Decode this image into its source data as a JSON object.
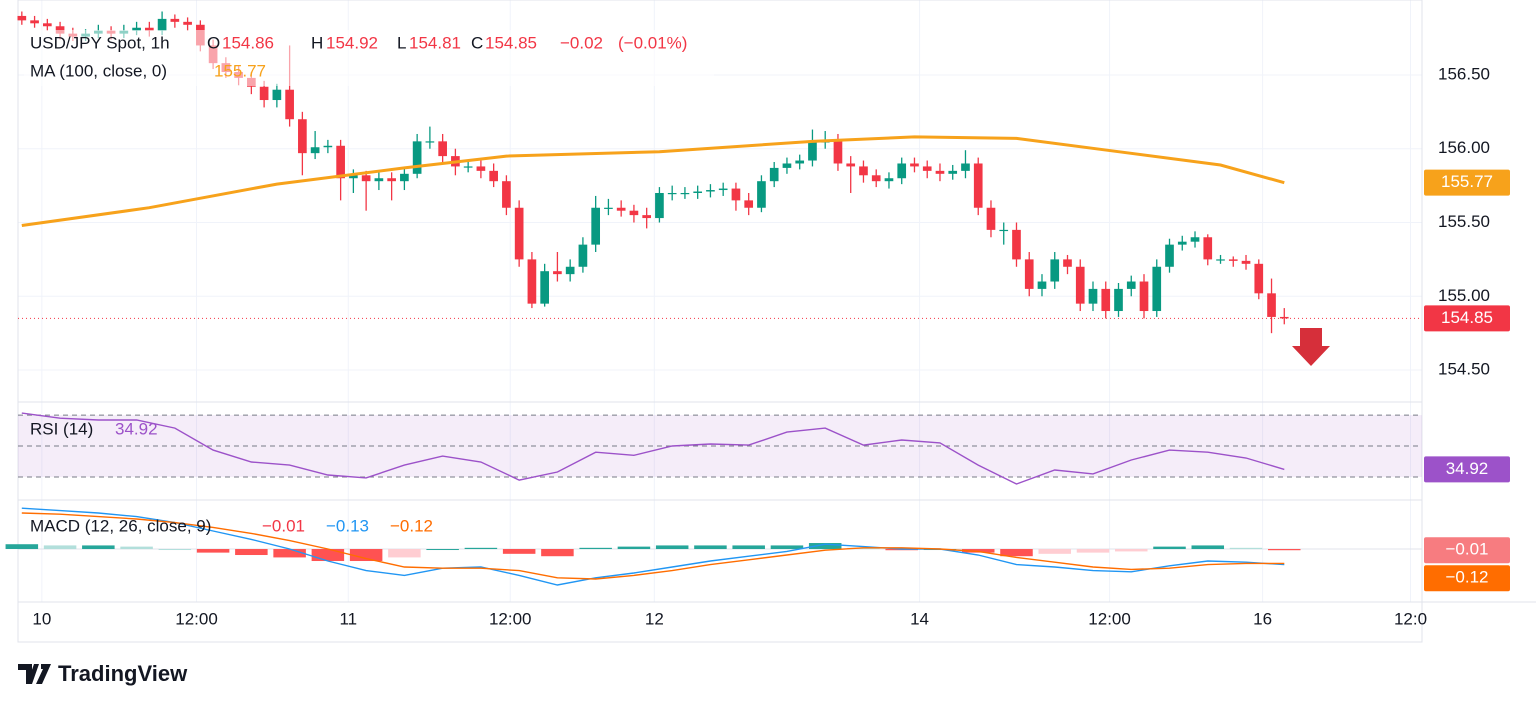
{
  "chart_data": {
    "type": "candlestick",
    "title": "USD/JPY Spot, 1h",
    "ohlc_labels": [
      "O",
      "H",
      "L",
      "C"
    ],
    "change": {
      "value": -0.02,
      "label": "−0.02"
    },
    "change_pct": {
      "value": -0.01,
      "label": "(−0.01%)"
    },
    "up_color": "#089981",
    "down_color": "#f23645",
    "open": [
      156.9,
      156.87,
      156.85,
      156.83,
      156.78,
      156.76,
      156.78,
      156.8,
      156.78,
      156.8,
      156.82,
      156.8,
      156.88,
      156.86,
      156.84,
      156.7,
      156.58,
      156.52,
      156.48,
      156.42,
      156.33,
      156.4,
      156.2,
      155.97,
      156.01,
      156.02,
      155.8,
      155.82,
      155.78,
      155.8,
      155.78,
      155.83,
      156.05,
      156.05,
      155.95,
      155.88,
      155.88,
      155.85,
      155.78,
      155.6,
      155.25,
      154.95,
      155.17,
      155.15,
      155.2,
      155.35,
      155.6,
      155.6,
      155.58,
      155.55,
      155.53,
      155.7,
      155.7,
      155.7,
      155.71,
      155.72,
      155.73,
      155.65,
      155.6,
      155.78,
      155.87,
      155.9,
      155.92,
      156.05,
      156.05,
      155.9,
      155.88,
      155.82,
      155.78,
      155.8,
      155.9,
      155.88,
      155.85,
      155.83,
      155.85,
      155.9,
      155.6,
      155.45,
      155.45,
      155.25,
      155.05,
      155.1,
      155.25,
      155.2,
      154.95,
      155.05,
      154.9,
      155.05,
      155.1,
      154.9,
      155.2,
      155.35,
      155.37,
      155.4,
      155.25,
      155.25,
      155.24,
      155.22,
      155.02,
      154.86
    ],
    "high": [
      156.93,
      156.9,
      156.88,
      156.86,
      156.82,
      156.81,
      156.84,
      156.83,
      156.84,
      156.86,
      156.86,
      156.93,
      156.91,
      156.89,
      156.87,
      156.74,
      156.62,
      156.56,
      156.52,
      156.46,
      156.44,
      156.7,
      156.25,
      156.12,
      156.06,
      156.06,
      155.86,
      155.85,
      155.84,
      155.84,
      155.87,
      156.1,
      156.15,
      156.1,
      156.0,
      155.92,
      155.92,
      155.9,
      155.82,
      155.65,
      155.3,
      155.22,
      155.3,
      155.25,
      155.4,
      155.68,
      155.66,
      155.65,
      155.62,
      155.6,
      155.74,
      155.75,
      155.74,
      155.75,
      155.76,
      155.77,
      155.77,
      155.7,
      155.82,
      155.91,
      155.94,
      155.96,
      156.13,
      156.12,
      156.1,
      155.95,
      155.92,
      155.86,
      155.84,
      155.94,
      155.94,
      155.92,
      155.9,
      155.89,
      155.99,
      155.94,
      155.65,
      155.5,
      155.5,
      155.3,
      155.15,
      155.3,
      155.28,
      155.25,
      155.1,
      155.1,
      155.09,
      155.14,
      155.15,
      155.25,
      155.39,
      155.41,
      155.44,
      155.42,
      155.28,
      155.27,
      155.28,
      155.25,
      155.12,
      154.92
    ],
    "low": [
      156.84,
      156.82,
      156.8,
      156.74,
      156.73,
      156.73,
      156.75,
      156.74,
      156.75,
      156.77,
      156.76,
      156.77,
      156.82,
      156.8,
      156.66,
      156.54,
      156.48,
      156.43,
      156.37,
      156.28,
      156.28,
      156.15,
      155.82,
      155.93,
      155.97,
      155.65,
      155.7,
      155.58,
      155.72,
      155.65,
      155.72,
      155.8,
      156.0,
      155.9,
      155.82,
      155.84,
      155.8,
      155.74,
      155.55,
      155.2,
      154.92,
      154.93,
      155.1,
      155.1,
      155.16,
      155.3,
      155.55,
      155.54,
      155.5,
      155.46,
      155.5,
      155.65,
      155.66,
      155.66,
      155.67,
      155.68,
      155.58,
      155.55,
      155.57,
      155.74,
      155.83,
      155.86,
      155.88,
      156.0,
      155.85,
      155.7,
      155.77,
      155.74,
      155.73,
      155.76,
      155.84,
      155.8,
      155.78,
      155.79,
      155.8,
      155.55,
      155.4,
      155.35,
      155.2,
      155.0,
      155.0,
      155.05,
      155.15,
      154.9,
      154.9,
      154.85,
      154.86,
      155.0,
      154.85,
      154.86,
      155.16,
      155.31,
      155.33,
      155.21,
      155.22,
      155.2,
      155.18,
      154.98,
      154.75,
      154.81
    ],
    "close": [
      156.87,
      156.85,
      156.83,
      156.78,
      156.76,
      156.78,
      156.8,
      156.78,
      156.8,
      156.82,
      156.8,
      156.88,
      156.86,
      156.84,
      156.7,
      156.58,
      156.52,
      156.48,
      156.42,
      156.33,
      156.4,
      156.2,
      155.97,
      156.01,
      156.02,
      155.8,
      155.82,
      155.78,
      155.8,
      155.78,
      155.83,
      156.05,
      156.05,
      155.95,
      155.88,
      155.88,
      155.85,
      155.78,
      155.6,
      155.25,
      154.95,
      155.17,
      155.15,
      155.2,
      155.35,
      155.6,
      155.6,
      155.58,
      155.55,
      155.53,
      155.7,
      155.7,
      155.7,
      155.71,
      155.72,
      155.73,
      155.65,
      155.6,
      155.78,
      155.87,
      155.9,
      155.92,
      156.05,
      156.05,
      155.9,
      155.88,
      155.82,
      155.78,
      155.8,
      155.9,
      155.88,
      155.85,
      155.83,
      155.85,
      155.9,
      155.6,
      155.45,
      155.45,
      155.25,
      155.05,
      155.1,
      155.25,
      155.2,
      154.95,
      155.05,
      154.9,
      155.05,
      155.1,
      154.9,
      155.2,
      155.35,
      155.37,
      155.4,
      155.25,
      155.25,
      155.24,
      155.22,
      155.02,
      154.86,
      154.85
    ],
    "xlim": [
      -0.3,
      109.8
    ],
    "xticks": [
      {
        "value": 1.57,
        "label": "10"
      },
      {
        "value": 13.7,
        "label": "12:00"
      },
      {
        "value": 25.6,
        "label": "11"
      },
      {
        "value": 38.3,
        "label": "12:00"
      },
      {
        "value": 49.6,
        "label": "12"
      },
      {
        "value": 70.4,
        "label": "14"
      },
      {
        "value": 85.3,
        "label": "12:00"
      },
      {
        "value": 97.3,
        "label": "16"
      },
      {
        "value": 108.9,
        "label": "12:0"
      }
    ],
    "ylim": [
      154.297,
      157.008
    ],
    "yticks": [
      {
        "value": 154.5,
        "label": "154.50"
      },
      {
        "value": 155,
        "label": "155.00"
      },
      {
        "value": 155.5,
        "label": "155.50"
      },
      {
        "value": 156,
        "label": "156.00"
      },
      {
        "value": 156.5,
        "label": "156.50"
      }
    ],
    "grid": true,
    "moving_average": {
      "name": "MA (100, close, 0)",
      "color": "#f7a21b",
      "x": [
        0,
        10,
        20,
        30,
        38,
        50,
        62,
        70,
        78,
        86,
        94,
        99
      ],
      "values": [
        155.48,
        155.6,
        155.76,
        155.87,
        155.95,
        155.98,
        156.05,
        156.08,
        156.07,
        155.98,
        155.89,
        155.77
      ]
    },
    "rsi": {
      "name": "RSI (14)",
      "color": "#9c52c9",
      "ylim": [
        21.6,
        76.5
      ],
      "levels": [
        30,
        50,
        70
      ],
      "x": [
        0,
        3,
        6,
        9,
        12,
        15,
        18,
        21,
        24,
        27,
        30,
        33,
        36,
        39,
        42,
        45,
        48,
        51,
        54,
        57,
        60,
        63,
        66,
        69,
        72,
        75,
        78,
        81,
        84,
        87,
        90,
        93,
        96,
        99
      ],
      "values": [
        71.3,
        68,
        66.8,
        66.8,
        61.6,
        47.4,
        39.7,
        37.7,
        31.3,
        29.4,
        37.7,
        43.5,
        39.7,
        28,
        33.2,
        46,
        44,
        50,
        51.3,
        50.6,
        59,
        61.6,
        50.6,
        53.9,
        52,
        37.7,
        25.5,
        34.5,
        32,
        41,
        47.4,
        46,
        42.3,
        34.92
      ]
    },
    "macd": {
      "name": "MACD (12, 26, close, 9)",
      "ylim": [
        -0.425,
        0.367
      ],
      "x": [
        0,
        3,
        6,
        9,
        12,
        15,
        18,
        21,
        24,
        27,
        30,
        33,
        36,
        39,
        42,
        45,
        48,
        51,
        54,
        57,
        60,
        63,
        66,
        69,
        72,
        75,
        78,
        81,
        84,
        87,
        90,
        93,
        96,
        99
      ],
      "histogram": {
        "legend_value": {
          "value": -0.01,
          "label": "−0.01"
        },
        "colors": [
          "#26a69a",
          "#b2dfdb",
          "#ff5252",
          "#ffcdd2"
        ],
        "values": [
          0.04,
          0.03,
          0.03,
          0.02,
          0,
          -0.03,
          -0.05,
          -0.07,
          -0.1,
          -0.1,
          -0.07,
          0,
          0.01,
          -0.04,
          -0.06,
          0.01,
          0.02,
          0.03,
          0.03,
          0.03,
          0.03,
          0.05,
          0.01,
          -0.01,
          0,
          -0.03,
          -0.06,
          -0.04,
          -0.03,
          -0.02,
          0.02,
          0.03,
          0.01,
          -0.01
        ]
      },
      "macd_line": {
        "color": "#2196f3",
        "legend_value": {
          "value": -0.13,
          "label": "−0.13"
        },
        "values": [
          0.34,
          0.32,
          0.3,
          0.27,
          0.22,
          0.15,
          0.08,
          0.0,
          -0.1,
          -0.18,
          -0.22,
          -0.16,
          -0.15,
          -0.22,
          -0.3,
          -0.24,
          -0.2,
          -0.15,
          -0.1,
          -0.06,
          -0.02,
          0.04,
          0.02,
          0.0,
          0.0,
          -0.05,
          -0.13,
          -0.15,
          -0.18,
          -0.19,
          -0.14,
          -0.1,
          -0.11,
          -0.13
        ]
      },
      "signal_line": {
        "color": "#ff6d00",
        "legend_value": {
          "value": -0.12,
          "label": "−0.12"
        },
        "values": [
          0.3,
          0.29,
          0.27,
          0.25,
          0.22,
          0.18,
          0.13,
          0.07,
          0.0,
          -0.08,
          -0.15,
          -0.16,
          -0.16,
          -0.18,
          -0.24,
          -0.25,
          -0.22,
          -0.18,
          -0.13,
          -0.09,
          -0.05,
          -0.01,
          0.01,
          0.01,
          0.0,
          -0.02,
          -0.07,
          -0.11,
          -0.15,
          -0.17,
          -0.16,
          -0.13,
          -0.12,
          -0.12
        ]
      }
    },
    "brand": "TradingView"
  }
}
